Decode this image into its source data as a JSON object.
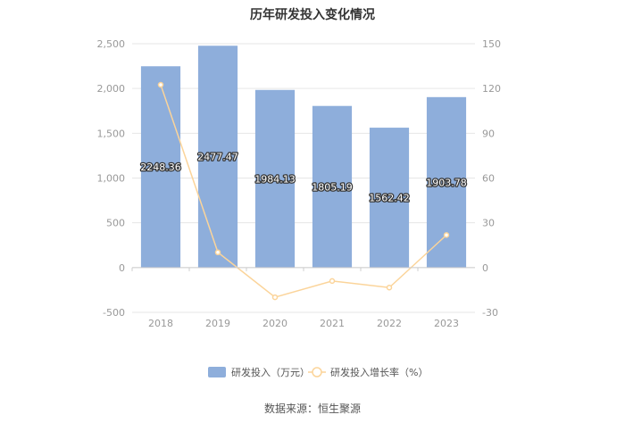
{
  "title": "历年研发投入变化情况",
  "source": "数据来源：恒生聚源",
  "chart_data": {
    "type": "bar",
    "categories": [
      "2018",
      "2019",
      "2020",
      "2021",
      "2022",
      "2023"
    ],
    "series": [
      {
        "name": "研发投入（万元）",
        "type": "bar",
        "axis": "left",
        "color": "#8eaedb",
        "values": [
          2248.36,
          2477.47,
          1984.13,
          1805.19,
          1562.42,
          1903.78
        ],
        "labels": [
          "2248.36",
          "2477.47",
          "1984.13",
          "1805.19",
          "1562.42",
          "1903.78"
        ]
      },
      {
        "name": "研发投入增长率（%）",
        "type": "line",
        "axis": "right",
        "color": "#fbd49a",
        "values": [
          122.5,
          10.2,
          -19.9,
          -9.0,
          -13.4,
          21.8
        ]
      }
    ],
    "left_axis": {
      "ylim": [
        -500,
        2500
      ],
      "ticks": [
        -500,
        0,
        500,
        1000,
        1500,
        2000,
        2500
      ],
      "tick_labels": [
        "-500",
        "0",
        "500",
        "1,000",
        "1,500",
        "2,000",
        "2,500"
      ]
    },
    "right_axis": {
      "ylim": [
        -30,
        150
      ],
      "ticks": [
        -30,
        0,
        30,
        60,
        90,
        120,
        150
      ],
      "tick_labels": [
        "-30",
        "0",
        "30",
        "60",
        "90",
        "120",
        "150"
      ]
    },
    "grid": true,
    "legend_position": "bottom"
  }
}
